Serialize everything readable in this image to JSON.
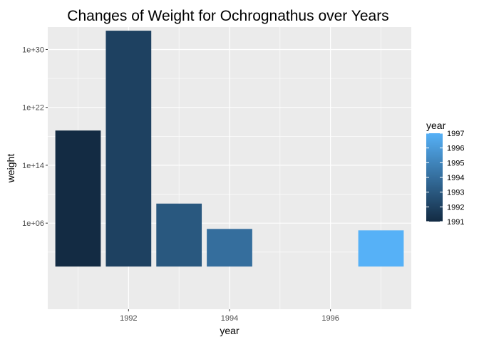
{
  "chart_data": {
    "type": "bar",
    "title": "Changes of Weight for Ochrognathus over Years",
    "xlabel": "year",
    "ylabel": "weight",
    "y_scale": "log10",
    "xlim": [
      1990.4,
      1997.6
    ],
    "ylim_log10": [
      -5.9,
      33.1
    ],
    "x_ticks": [
      1992,
      1994,
      1996
    ],
    "x_tick_labels": [
      "1992",
      "1994",
      "1996"
    ],
    "y_ticks_log10": [
      6,
      14,
      22,
      30
    ],
    "y_tick_labels": [
      "1e+06",
      "1e+14",
      "1e+22",
      "1e+30"
    ],
    "bar_baseline_log10": 0,
    "bars": [
      {
        "year": 1991,
        "value_log10": 18.8
      },
      {
        "year": 1992,
        "value_log10": 32.6
      },
      {
        "year": 1993,
        "value_log10": 8.7
      },
      {
        "year": 1994,
        "value_log10": 5.2
      },
      {
        "year": 1997,
        "value_log10": 5.0
      }
    ],
    "grid": true,
    "panel_background": "#ebebeb",
    "grid_color": "#ffffff",
    "legend": {
      "title": "year",
      "placement": "right",
      "type": "colorbar",
      "range": [
        1991,
        1997
      ],
      "labels": [
        "1997",
        "1996",
        "1995",
        "1994",
        "1993",
        "1992",
        "1991"
      ],
      "color_low": "#132b43",
      "color_high": "#56b1f7"
    }
  }
}
